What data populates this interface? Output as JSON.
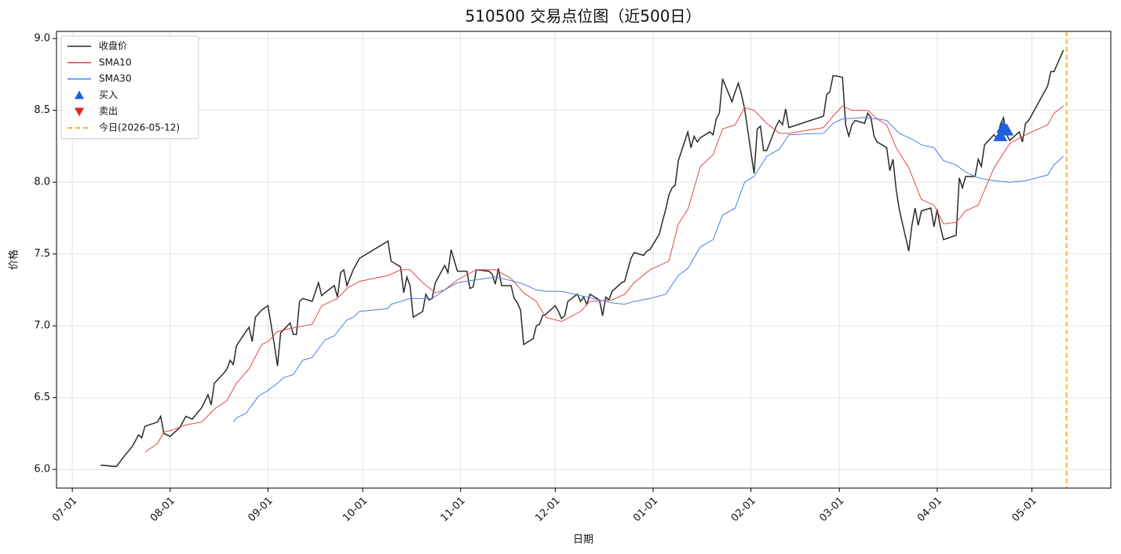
{
  "chart_data": {
    "type": "line",
    "title": "510500 交易点位图（近500日）",
    "xlabel": "日期",
    "ylabel": "价格",
    "xlim": [
      "06-26",
      "05-26"
    ],
    "xticks": [
      "07-01",
      "08-01",
      "09-01",
      "10-01",
      "11-01",
      "12-01",
      "01-01",
      "02-01",
      "03-01",
      "04-01",
      "05-01"
    ],
    "ylim": [
      5.87,
      9.05
    ],
    "yticks": [
      {
        "value": 6,
        "label": "6.0"
      },
      6.5,
      {
        "value": 7,
        "label": "7.0"
      },
      7.5,
      {
        "value": 8,
        "label": "8.0"
      },
      8.5,
      {
        "value": 9,
        "label": "9.0"
      }
    ],
    "grid": true,
    "legend": "upper left",
    "series": [
      {
        "name": "收盘价",
        "color": "#2b2b2b",
        "x": [
          "07-10",
          "07-15",
          "07-17",
          "07-20",
          "07-22",
          "07-23",
          "07-24",
          "07-28",
          "07-29",
          "07-30",
          "08-01",
          "08-04",
          "08-06",
          "08-08",
          "08-11",
          "08-13",
          "08-14",
          "08-15",
          "08-18",
          "08-19",
          "08-20",
          "08-21",
          "08-22",
          "08-25",
          "08-26",
          "08-27",
          "08-28",
          "08-30",
          "09-01",
          "09-03",
          "09-04",
          "09-05",
          "09-08",
          "09-09",
          "09-10",
          "09-11",
          "09-12",
          "09-15",
          "09-17",
          "09-18",
          "09-19",
          "09-22",
          "09-23",
          "09-24",
          "09-25",
          "09-26",
          "09-28",
          "09-30",
          "10-09",
          "10-10",
          "10-13",
          "10-14",
          "10-15",
          "10-16",
          "10-17",
          "10-20",
          "10-21",
          "10-22",
          "10-23",
          "10-24",
          "10-27",
          "10-28",
          "10-29",
          "10-31",
          "11-03",
          "11-04",
          "11-05",
          "11-06",
          "11-10",
          "11-11",
          "11-12",
          "11-13",
          "11-14",
          "11-17",
          "11-18",
          "11-19",
          "11-20",
          "11-21",
          "11-24",
          "11-25",
          "11-26",
          "11-27",
          "11-28",
          "12-01",
          "12-02",
          "12-03",
          "12-04",
          "12-05",
          "12-08",
          "12-09",
          "12-10",
          "12-11",
          "12-12",
          "12-15",
          "12-16",
          "12-17",
          "12-18",
          "12-19",
          "12-22",
          "12-23",
          "12-24",
          "12-25",
          "12-26",
          "12-29",
          "12-30",
          "12-31",
          "01-03",
          "01-04",
          "01-05",
          "01-06",
          "01-07",
          "01-08",
          "01-09",
          "01-12",
          "01-13",
          "01-14",
          "01-15",
          "01-16",
          "01-19",
          "01-20",
          "01-21",
          "01-22",
          "01-23",
          "01-26",
          "01-27",
          "01-28",
          "01-29",
          "01-30",
          "02-02",
          "02-03",
          "02-04",
          "02-05",
          "02-06",
          "02-09",
          "02-10",
          "02-11",
          "02-12",
          "02-13",
          "02-24",
          "02-25",
          "02-26",
          "02-27",
          "02-28",
          "03-02",
          "03-03",
          "03-04",
          "03-05",
          "03-06",
          "03-09",
          "03-10",
          "03-11",
          "03-12",
          "03-13",
          "03-16",
          "03-17",
          "03-18",
          "03-19",
          "03-20",
          "03-23",
          "03-24",
          "03-25",
          "03-26",
          "03-27",
          "03-30",
          "03-31",
          "04-01",
          "04-02",
          "04-03",
          "04-07",
          "04-08",
          "04-09",
          "04-10",
          "04-13",
          "04-14",
          "04-15",
          "04-16",
          "04-19",
          "04-20",
          "04-21",
          "04-22",
          "04-23",
          "04-24",
          "04-27",
          "04-28",
          "04-29",
          "04-30",
          "05-06",
          "05-07",
          "05-08",
          "05-11"
        ],
        "values": [
          6.03,
          6.02,
          6.08,
          6.16,
          6.24,
          6.22,
          6.3,
          6.33,
          6.37,
          6.25,
          6.23,
          6.29,
          6.37,
          6.35,
          6.43,
          6.52,
          6.45,
          6.6,
          6.67,
          6.7,
          6.76,
          6.73,
          6.86,
          6.96,
          6.99,
          6.89,
          7.06,
          7.11,
          7.14,
          6.87,
          6.72,
          6.95,
          7.02,
          6.94,
          6.94,
          7.17,
          7.19,
          7.17,
          7.3,
          7.21,
          7.23,
          7.28,
          7.2,
          7.37,
          7.39,
          7.28,
          7.39,
          7.47,
          7.59,
          7.45,
          7.41,
          7.23,
          7.34,
          7.28,
          7.06,
          7.1,
          7.22,
          7.18,
          7.19,
          7.3,
          7.42,
          7.37,
          7.53,
          7.38,
          7.38,
          7.26,
          7.27,
          7.39,
          7.38,
          7.36,
          7.29,
          7.4,
          7.28,
          7.28,
          7.19,
          7.16,
          7.11,
          6.87,
          6.91,
          7.0,
          7.01,
          7.07,
          7.08,
          7.14,
          7.1,
          7.05,
          7.07,
          7.17,
          7.22,
          7.17,
          7.2,
          7.15,
          7.22,
          7.18,
          7.07,
          7.2,
          7.18,
          7.24,
          7.3,
          7.31,
          7.39,
          7.47,
          7.51,
          7.49,
          7.52,
          7.53,
          7.64,
          7.73,
          7.81,
          7.91,
          7.96,
          7.98,
          8.15,
          8.35,
          8.24,
          8.32,
          8.28,
          8.31,
          8.35,
          8.33,
          8.44,
          8.48,
          8.72,
          8.56,
          8.63,
          8.69,
          8.61,
          8.51,
          8.06,
          8.37,
          8.39,
          8.22,
          8.22,
          8.39,
          8.43,
          8.4,
          8.51,
          8.38,
          8.46,
          8.61,
          8.63,
          8.74,
          8.74,
          8.73,
          8.4,
          8.32,
          8.4,
          8.43,
          8.41,
          8.48,
          8.45,
          8.32,
          8.28,
          8.24,
          8.08,
          8.16,
          7.95,
          7.81,
          7.52,
          7.7,
          7.82,
          7.7,
          7.8,
          7.82,
          7.69,
          7.81,
          7.69,
          7.6,
          7.63,
          8.03,
          7.96,
          8.04,
          8.04,
          8.16,
          8.11,
          8.26,
          8.33,
          8.3,
          8.4,
          8.45,
          8.33,
          8.29,
          8.35,
          8.28,
          8.41,
          8.43,
          8.67,
          8.77,
          8.77,
          8.92
        ]
      },
      {
        "name": "SMA10",
        "color": "#e04848",
        "x": [
          "07-24",
          "07-28",
          "07-30",
          "08-01",
          "08-06",
          "08-11",
          "08-15",
          "08-19",
          "08-22",
          "08-26",
          "08-30",
          "09-01",
          "09-04",
          "09-10",
          "09-15",
          "09-18",
          "09-23",
          "09-26",
          "09-30",
          "10-09",
          "10-13",
          "10-16",
          "10-20",
          "10-24",
          "10-27",
          "10-31",
          "11-06",
          "11-12",
          "11-17",
          "11-21",
          "11-25",
          "11-28",
          "12-03",
          "12-09",
          "12-12",
          "12-19",
          "12-23",
          "12-26",
          "12-31",
          "01-06",
          "01-09",
          "01-12",
          "01-16",
          "01-20",
          "01-23",
          "01-27",
          "01-30",
          "02-02",
          "02-06",
          "02-10",
          "02-13",
          "02-24",
          "02-27",
          "03-02",
          "03-05",
          "03-10",
          "03-13",
          "03-16",
          "03-19",
          "03-23",
          "03-27",
          "03-31",
          "04-03",
          "04-07",
          "04-10",
          "04-14",
          "04-19",
          "04-24",
          "04-29",
          "05-06",
          "05-08",
          "05-11"
        ],
        "values": [
          6.12,
          6.18,
          6.26,
          6.27,
          6.31,
          6.33,
          6.42,
          6.48,
          6.6,
          6.7,
          6.87,
          6.89,
          6.96,
          6.99,
          7.01,
          7.14,
          7.19,
          7.26,
          7.31,
          7.35,
          7.39,
          7.39,
          7.3,
          7.23,
          7.25,
          7.32,
          7.39,
          7.39,
          7.33,
          7.23,
          7.17,
          7.06,
          7.03,
          7.1,
          7.17,
          7.18,
          7.22,
          7.3,
          7.39,
          7.45,
          7.71,
          7.81,
          8.11,
          8.19,
          8.37,
          8.4,
          8.52,
          8.5,
          8.41,
          8.34,
          8.34,
          8.38,
          8.46,
          8.53,
          8.5,
          8.5,
          8.44,
          8.4,
          8.24,
          8.1,
          7.88,
          7.84,
          7.71,
          7.72,
          7.8,
          7.84,
          8.1,
          8.27,
          8.33,
          8.4,
          8.48,
          8.53
        ]
      },
      {
        "name": "SMA30",
        "color": "#4a7fe8",
        "x": [
          "08-21",
          "08-22",
          "08-25",
          "08-29",
          "09-01",
          "09-04",
          "09-06",
          "09-09",
          "09-12",
          "09-15",
          "09-19",
          "09-22",
          "09-26",
          "09-28",
          "09-30",
          "10-09",
          "10-10",
          "10-13",
          "10-16",
          "10-23",
          "10-27",
          "10-31",
          "11-06",
          "11-12",
          "11-18",
          "11-21",
          "11-25",
          "11-28",
          "12-03",
          "12-09",
          "12-15",
          "12-19",
          "12-23",
          "12-26",
          "12-31",
          "01-05",
          "01-09",
          "01-12",
          "01-16",
          "01-20",
          "01-23",
          "01-27",
          "01-30",
          "02-02",
          "02-06",
          "02-10",
          "02-13",
          "02-24",
          "02-27",
          "03-02",
          "03-09",
          "03-13",
          "03-16",
          "03-20",
          "03-24",
          "03-27",
          "03-31",
          "04-03",
          "04-07",
          "04-10",
          "04-14",
          "04-19",
          "04-24",
          "04-29",
          "05-06",
          "05-08",
          "05-11"
        ],
        "values": [
          6.33,
          6.36,
          6.39,
          6.51,
          6.55,
          6.6,
          6.64,
          6.66,
          6.76,
          6.78,
          6.9,
          6.93,
          7.04,
          7.06,
          7.1,
          7.12,
          7.15,
          7.17,
          7.19,
          7.19,
          7.25,
          7.3,
          7.32,
          7.34,
          7.31,
          7.29,
          7.25,
          7.24,
          7.24,
          7.21,
          7.18,
          7.16,
          7.15,
          7.17,
          7.19,
          7.22,
          7.35,
          7.4,
          7.55,
          7.6,
          7.77,
          7.82,
          8.0,
          8.04,
          8.18,
          8.23,
          8.33,
          8.34,
          8.41,
          8.44,
          8.45,
          8.44,
          8.43,
          8.34,
          8.3,
          8.26,
          8.24,
          8.15,
          8.12,
          8.07,
          8.03,
          8.01,
          8.0,
          8.01,
          8.05,
          8.12,
          8.18
        ]
      }
    ],
    "markers": [
      {
        "name": "买入",
        "color": "#1f5fe0",
        "marker": "triangle-up",
        "x": [
          "04-21",
          "04-22",
          "04-23"
        ],
        "values": [
          8.32,
          8.38,
          8.36
        ]
      },
      {
        "name": "卖出",
        "color": "#e02424",
        "marker": "triangle-down",
        "x": [],
        "values": []
      }
    ],
    "today": {
      "name": "今日(2026-05-12)",
      "x": "05-12",
      "color": "#f4b448"
    }
  }
}
